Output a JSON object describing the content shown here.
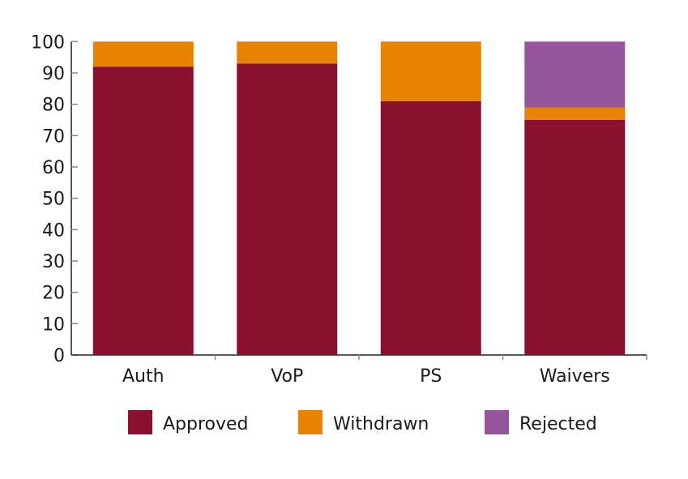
{
  "chart_data": {
    "type": "bar",
    "stacked": true,
    "title": "",
    "xlabel": "",
    "ylabel": "",
    "ylim": [
      0,
      100
    ],
    "yticks": [
      0,
      10,
      20,
      30,
      40,
      50,
      60,
      70,
      80,
      90,
      100
    ],
    "categories": [
      "Auth",
      "VoP",
      "PS",
      "Waivers"
    ],
    "series": [
      {
        "name": "Approved",
        "color": "#8b0f2e",
        "values": [
          92,
          93,
          81,
          75
        ]
      },
      {
        "name": "Withdrawn",
        "color": "#e88300",
        "values": [
          8,
          7,
          19,
          4
        ]
      },
      {
        "name": "Rejected",
        "color": "#96559c",
        "values": [
          0,
          0,
          0,
          21
        ]
      }
    ],
    "grid": false,
    "legend_position": "bottom"
  }
}
